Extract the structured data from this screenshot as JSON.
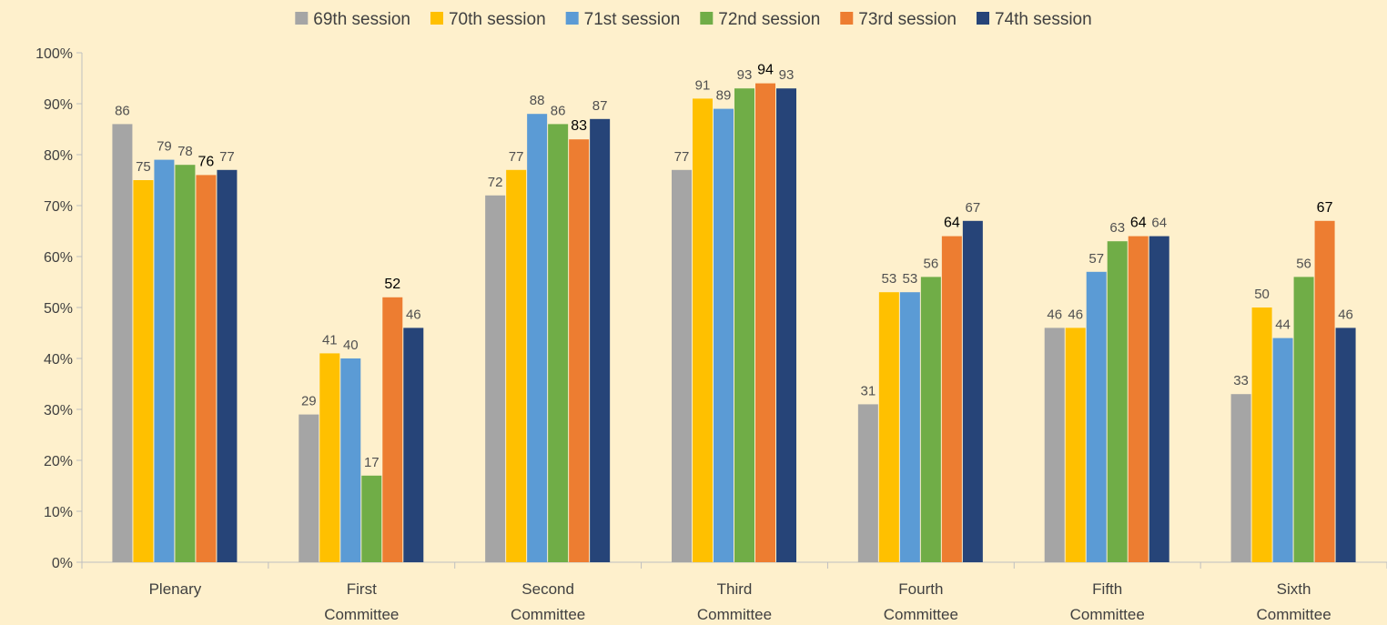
{
  "chart_data": {
    "type": "bar",
    "title": "",
    "xlabel": "",
    "ylabel": "",
    "ylim": [
      0,
      100
    ],
    "y_ticks": [
      "0%",
      "10%",
      "20%",
      "30%",
      "40%",
      "50%",
      "60%",
      "70%",
      "80%",
      "90%",
      "100%"
    ],
    "grid": false,
    "legend_position": "top",
    "categories": [
      [
        "Plenary"
      ],
      [
        "First",
        "Committee"
      ],
      [
        "Second",
        "Committee"
      ],
      [
        "Third",
        "Committee"
      ],
      [
        "Fourth",
        "Committee"
      ],
      [
        "Fifth",
        "Committee"
      ],
      [
        "Sixth",
        "Committee"
      ]
    ],
    "series": [
      {
        "name": "69th session",
        "color": "#a5a5a5",
        "values": [
          86,
          29,
          72,
          77,
          31,
          46,
          33
        ],
        "labels": [
          "86",
          "29",
          "72",
          "77",
          "31",
          "46",
          "33"
        ]
      },
      {
        "name": "70th session",
        "color": "#ffc000",
        "values": [
          75,
          41,
          77,
          91,
          53,
          46,
          50
        ],
        "labels": [
          "75",
          "41",
          "77",
          "91",
          "53",
          "46",
          "50"
        ]
      },
      {
        "name": "71st session",
        "color": "#5b9bd5",
        "values": [
          79,
          40,
          88,
          89,
          53,
          57,
          44
        ],
        "labels": [
          "79",
          "40",
          "88",
          "89",
          "53",
          "57",
          "44"
        ]
      },
      {
        "name": "72nd session",
        "color": "#70ad47",
        "values": [
          78,
          17,
          86,
          93,
          56,
          63,
          56
        ],
        "labels": [
          "78",
          "17",
          "86",
          "93",
          "56",
          "63",
          "56"
        ]
      },
      {
        "name": "73rd session",
        "color": "#ed7d31",
        "values": [
          76,
          52,
          83,
          94,
          64,
          64,
          67
        ],
        "labels": [
          "76",
          "52",
          "83",
          "94",
          "64",
          "64",
          "67"
        ],
        "emphasis": true
      },
      {
        "name": "74th session",
        "color": "#264478",
        "values": [
          77,
          46,
          87,
          93,
          67,
          64,
          46
        ],
        "labels": [
          "77",
          "46",
          "87",
          "93",
          "67",
          "64",
          "46"
        ]
      }
    ]
  }
}
